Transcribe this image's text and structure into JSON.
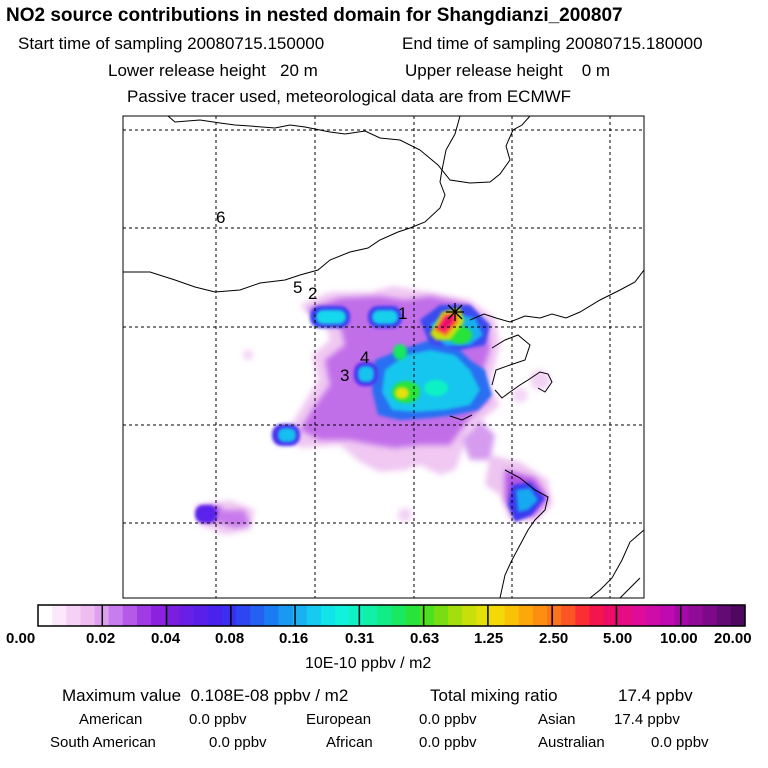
{
  "header": {
    "title": "NO2 source contributions in nested domain for Shangdianzi_200807",
    "start_time": "Start time of sampling 20080715.150000",
    "end_time": "End time of sampling 20080715.180000",
    "lower_release": "Lower release height   20 m",
    "upper_release": "Upper release height    0 m",
    "tracer_info": "Passive tracer used, meteorological data are from ECMWF"
  },
  "map": {
    "site_labels": [
      "1",
      "2",
      "3",
      "4",
      "5",
      "6"
    ],
    "receptor_marker": "star-cross-icon"
  },
  "colorbar": {
    "tick_labels": [
      "0.00",
      "0.02",
      "0.04",
      "0.08",
      "0.16",
      "0.31",
      "0.63",
      "1.25",
      "2.50",
      "5.00",
      "10.00",
      "20.00"
    ],
    "colors": [
      "#ffffff",
      "#fbe9fb",
      "#f5d2f5",
      "#efbcf0",
      "#dfa0ef",
      "#c87ced",
      "#b55ae8",
      "#a03be3",
      "#8c22e0",
      "#7a1fe0",
      "#6a1fe6",
      "#5a20ea",
      "#4a22ee",
      "#3c2ef2",
      "#2e45f2",
      "#2460f2",
      "#1a7cf2",
      "#1a98f2",
      "#18b2f2",
      "#16caf0",
      "#12e2ea",
      "#10f2dc",
      "#10f2c4",
      "#10f0a6",
      "#12ec86",
      "#18e862",
      "#28e43a",
      "#4ce01e",
      "#78de12",
      "#a4de0e",
      "#c8e00a",
      "#e4e008",
      "#f6d806",
      "#fac206",
      "#fca80a",
      "#fc8e12",
      "#fc741a",
      "#fc5424",
      "#fc2e34",
      "#f4144e",
      "#ec0c6a",
      "#e60c84",
      "#de0c98",
      "#d00ca8",
      "#be0ab0",
      "#a808a8",
      "#920a98",
      "#7c0a88",
      "#640a74",
      "#4e0860"
    ],
    "units": "10E-10 ppbv / m2"
  },
  "stats": {
    "max_value": "Maximum value  0.108E-08 ppbv / m2",
    "total_mixing": "Total mixing ratio",
    "total_mixing_value": "17.4 ppbv",
    "american_label": "American",
    "american_value": "0.0 ppbv",
    "european_label": "European",
    "european_value": "0.0 ppbv",
    "asian_label": "Asian",
    "asian_value": "17.4 ppbv",
    "south_american_label": "South American",
    "south_american_value": "0.0 ppbv",
    "african_label": "African",
    "african_value": "0.0 ppbv",
    "australian_label": "Australian",
    "australian_value": "0.0 ppbv"
  }
}
